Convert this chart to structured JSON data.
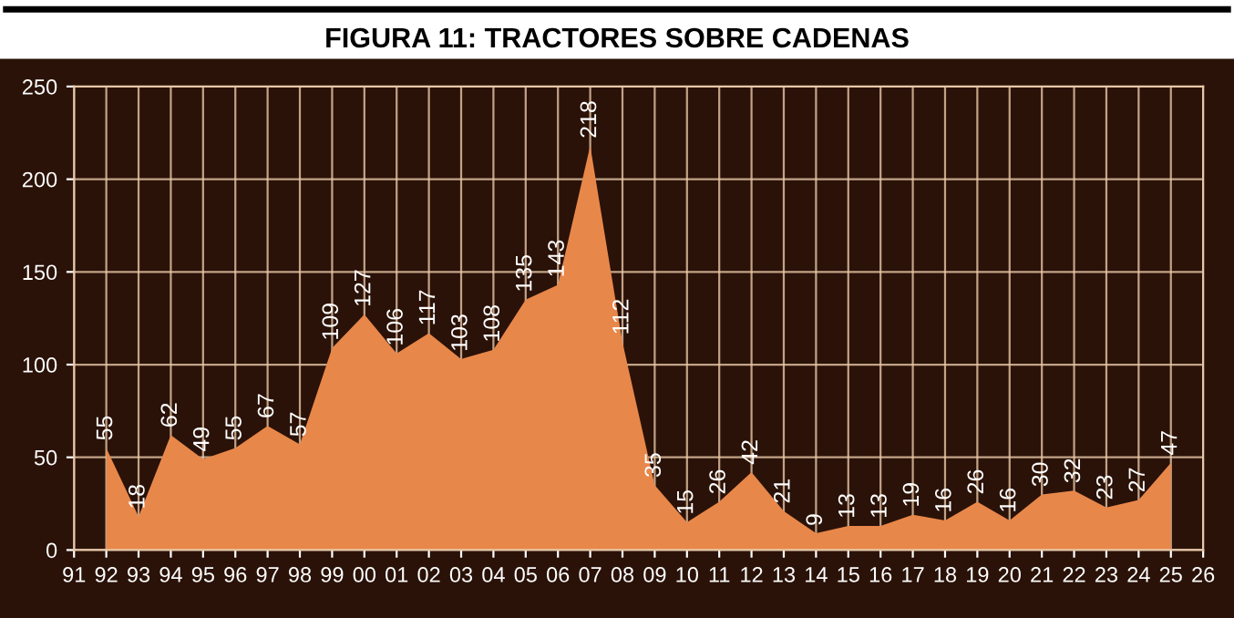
{
  "chart_data": {
    "type": "area",
    "title": "FIGURA 11: TRACTORES SOBRE CADENAS",
    "categories": [
      "91",
      "92",
      "93",
      "94",
      "95",
      "96",
      "97",
      "98",
      "99",
      "00",
      "01",
      "02",
      "03",
      "04",
      "05",
      "06",
      "07",
      "08",
      "09",
      "10",
      "11",
      "12",
      "13",
      "14",
      "15",
      "16",
      "17",
      "18",
      "19",
      "20",
      "21",
      "22",
      "23",
      "24",
      "25",
      "26"
    ],
    "series": [
      {
        "color": "#e8874a",
        "values": [
          null,
          55,
          18,
          62,
          49,
          55,
          67,
          57,
          109,
          127,
          106,
          117,
          103,
          108,
          135,
          143,
          218,
          112,
          35,
          15,
          26,
          42,
          21,
          9,
          13,
          13,
          19,
          16,
          26,
          16,
          30,
          32,
          23,
          27,
          47,
          null
        ]
      }
    ],
    "ylim": [
      0,
      250
    ],
    "yticks": [
      0,
      50,
      100,
      150,
      200,
      250
    ],
    "grid": true,
    "data_labels": true
  }
}
